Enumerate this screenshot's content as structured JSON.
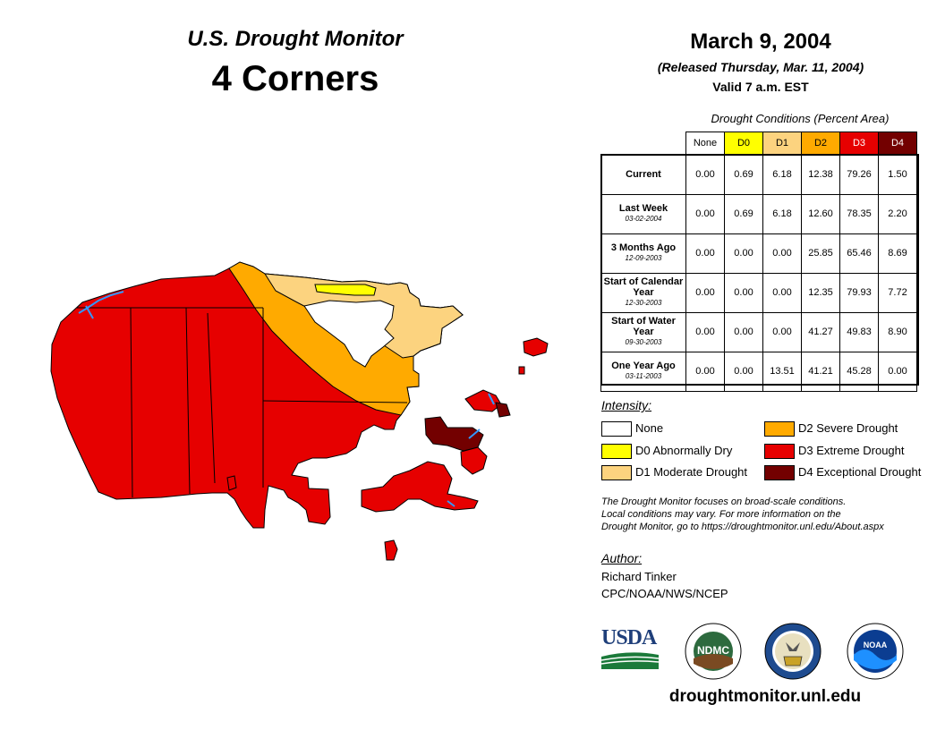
{
  "header": {
    "subtitle": "U.S. Drought Monitor",
    "title": "4 Corners",
    "date": "March 9, 2004",
    "released": "(Released Thursday, Mar. 11, 2004)",
    "valid": "Valid 7 a.m. EST"
  },
  "table": {
    "caption": "Drought Conditions (Percent Area)",
    "columns": [
      {
        "label": "None",
        "color": "#ffffff",
        "text_color": "#000000"
      },
      {
        "label": "D0",
        "color": "#ffff00",
        "text_color": "#000000"
      },
      {
        "label": "D1",
        "color": "#fcd37f",
        "text_color": "#000000"
      },
      {
        "label": "D2",
        "color": "#ffaa00",
        "text_color": "#000000"
      },
      {
        "label": "D3",
        "color": "#e60000",
        "text_color": "#ffffff"
      },
      {
        "label": "D4",
        "color": "#730000",
        "text_color": "#ffffff"
      }
    ],
    "rows": [
      {
        "label": "Current",
        "date": "",
        "values": [
          "0.00",
          "0.69",
          "6.18",
          "12.38",
          "79.26",
          "1.50"
        ]
      },
      {
        "label": "Last Week",
        "date": "03-02-2004",
        "values": [
          "0.00",
          "0.69",
          "6.18",
          "12.60",
          "78.35",
          "2.20"
        ]
      },
      {
        "label": "3 Months Ago",
        "date": "12-09-2003",
        "values": [
          "0.00",
          "0.00",
          "0.00",
          "25.85",
          "65.46",
          "8.69"
        ]
      },
      {
        "label": "Start of Calendar Year",
        "date": "12-30-2003",
        "values": [
          "0.00",
          "0.00",
          "0.00",
          "12.35",
          "79.93",
          "7.72"
        ]
      },
      {
        "label": "Start of Water Year",
        "date": "09-30-2003",
        "values": [
          "0.00",
          "0.00",
          "0.00",
          "41.27",
          "49.83",
          "8.90"
        ]
      },
      {
        "label": "One Year Ago",
        "date": "03-11-2003",
        "values": [
          "0.00",
          "0.00",
          "13.51",
          "41.21",
          "45.28",
          "0.00"
        ]
      }
    ]
  },
  "legend": {
    "title": "Intensity:",
    "items": [
      {
        "label": "None",
        "color": "#ffffff"
      },
      {
        "label": "D0 Abnormally Dry",
        "color": "#ffff00"
      },
      {
        "label": "D1 Moderate Drought",
        "color": "#fcd37f"
      },
      {
        "label": "D2 Severe Drought",
        "color": "#ffaa00"
      },
      {
        "label": "D3 Extreme Drought",
        "color": "#e60000"
      },
      {
        "label": "D4 Exceptional Drought",
        "color": "#730000"
      }
    ]
  },
  "note": {
    "line1": "The Drought Monitor focuses on broad-scale conditions.",
    "line2": "Local conditions may vary. For more information on the",
    "line3": "Drought Monitor, go to https://droughtmonitor.unl.edu/About.aspx"
  },
  "author": {
    "title": "Author:",
    "name": "Richard Tinker",
    "org": "CPC/NOAA/NWS/NCEP"
  },
  "logos": {
    "usda": "USDA",
    "ndmc": "NDMC",
    "noaa": "NOAA"
  },
  "website": "droughtmonitor.unl.edu"
}
